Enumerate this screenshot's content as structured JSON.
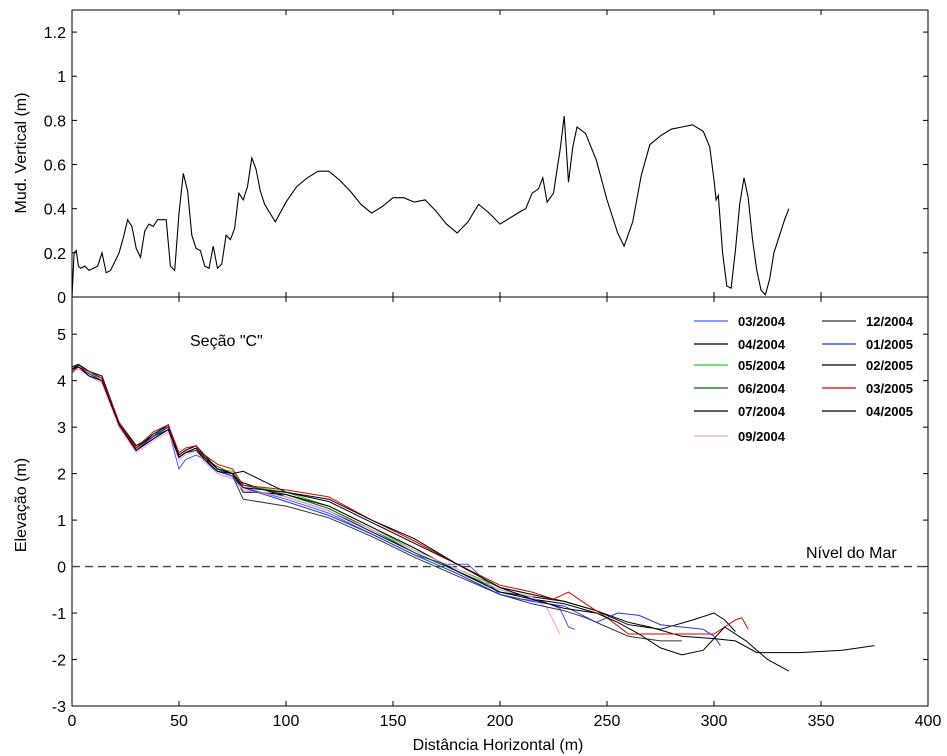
{
  "chart_data": [
    {
      "type": "line",
      "title": "",
      "xlabel": "",
      "ylabel": "Mud. Vertical (m)",
      "xlim": [
        0,
        400
      ],
      "ylim": [
        0,
        1.3
      ],
      "yticks": [
        "0",
        "0.2",
        "0.4",
        "0.6",
        "0.8",
        "1",
        "1.2"
      ],
      "grid": false,
      "series": [
        {
          "color": "#000000",
          "x": [
            0,
            1,
            2,
            3,
            4,
            6,
            8,
            10,
            12,
            14,
            16,
            18,
            20,
            22,
            24,
            26,
            28,
            30,
            32,
            34,
            36,
            38,
            40,
            42,
            44,
            46,
            48,
            50,
            52,
            54,
            56,
            58,
            60,
            62,
            64,
            66,
            68,
            70,
            72,
            74,
            76,
            78,
            80,
            82,
            84,
            86,
            88,
            90,
            95,
            100,
            105,
            110,
            115,
            120,
            125,
            130,
            135,
            140,
            145,
            150,
            155,
            160,
            165,
            170,
            175,
            180,
            185,
            190,
            195,
            200,
            205,
            210,
            212,
            215,
            218,
            220,
            222,
            225,
            227,
            228,
            229,
            230,
            232,
            234,
            236,
            240,
            245,
            250,
            255,
            258,
            262,
            266,
            270,
            275,
            280,
            285,
            290,
            295,
            298,
            300,
            301,
            302,
            304,
            306,
            308,
            310,
            312,
            314,
            316,
            318,
            320,
            322,
            324,
            326,
            328,
            330,
            333,
            335
          ],
          "y": [
            0.0,
            0.2,
            0.21,
            0.14,
            0.13,
            0.14,
            0.12,
            0.13,
            0.14,
            0.2,
            0.11,
            0.12,
            0.16,
            0.2,
            0.27,
            0.35,
            0.32,
            0.22,
            0.18,
            0.3,
            0.33,
            0.32,
            0.35,
            0.35,
            0.35,
            0.14,
            0.12,
            0.38,
            0.56,
            0.48,
            0.28,
            0.22,
            0.21,
            0.14,
            0.13,
            0.23,
            0.13,
            0.15,
            0.28,
            0.26,
            0.31,
            0.47,
            0.44,
            0.5,
            0.63,
            0.58,
            0.48,
            0.42,
            0.34,
            0.43,
            0.5,
            0.54,
            0.57,
            0.57,
            0.53,
            0.48,
            0.42,
            0.38,
            0.41,
            0.45,
            0.45,
            0.43,
            0.44,
            0.39,
            0.33,
            0.29,
            0.34,
            0.42,
            0.38,
            0.33,
            0.36,
            0.39,
            0.4,
            0.47,
            0.49,
            0.54,
            0.43,
            0.47,
            0.6,
            0.66,
            0.74,
            0.82,
            0.52,
            0.68,
            0.77,
            0.74,
            0.62,
            0.44,
            0.29,
            0.23,
            0.34,
            0.55,
            0.69,
            0.73,
            0.76,
            0.77,
            0.78,
            0.75,
            0.68,
            0.53,
            0.44,
            0.46,
            0.2,
            0.05,
            0.04,
            0.21,
            0.42,
            0.54,
            0.45,
            0.26,
            0.12,
            0.03,
            0.01,
            0.08,
            0.2,
            0.26,
            0.35,
            0.4
          ]
        }
      ]
    },
    {
      "type": "line",
      "title": "",
      "xlabel": "Distância Horizontal (m)",
      "ylabel": "Elevação (m)",
      "xlim": [
        0,
        400
      ],
      "ylim": [
        -3,
        5.8
      ],
      "xticks": [
        "0",
        "50",
        "100",
        "150",
        "200",
        "250",
        "300",
        "350",
        "400"
      ],
      "yticks": [
        "-3",
        "-2",
        "-1",
        "0",
        "1",
        "2",
        "3",
        "4",
        "5"
      ],
      "grid": false,
      "annotations": {
        "section_label": "Seção \"C\"",
        "sea_level_label": "Nível do Mar"
      },
      "sea_level": 0,
      "legend_position": "top-right",
      "series": [
        {
          "name": "03/2004",
          "color": "#3b5bff",
          "x": [
            0,
            3,
            8,
            14,
            22,
            30,
            38,
            45,
            50,
            53,
            58,
            62,
            68,
            75,
            80,
            100,
            120,
            140,
            160,
            175,
            185,
            200,
            210,
            220,
            228,
            232,
            235
          ],
          "y": [
            4.15,
            4.3,
            4.1,
            3.95,
            3.0,
            2.5,
            2.75,
            2.95,
            2.1,
            2.3,
            2.4,
            2.3,
            2.0,
            1.9,
            1.7,
            1.45,
            1.15,
            0.7,
            0.25,
            0.05,
            0.05,
            -0.6,
            -0.7,
            -0.75,
            -0.9,
            -1.3,
            -1.35
          ]
        },
        {
          "name": "04/2004",
          "color": "#000000",
          "x": [
            0,
            3,
            8,
            14,
            22,
            30,
            38,
            45,
            50,
            53,
            58,
            62,
            68,
            75,
            80,
            100,
            120,
            140,
            160,
            180,
            200,
            215,
            230,
            245,
            260,
            275,
            290,
            300,
            305,
            310
          ],
          "y": [
            4.2,
            4.3,
            4.15,
            4.0,
            3.05,
            2.55,
            2.8,
            3.05,
            2.35,
            2.45,
            2.55,
            2.3,
            2.05,
            1.95,
            1.8,
            1.5,
            1.2,
            0.75,
            0.3,
            -0.1,
            -0.55,
            -0.65,
            -0.75,
            -0.95,
            -1.25,
            -1.35,
            -1.15,
            -1.0,
            -1.15,
            -1.4
          ]
        },
        {
          "name": "05/2004",
          "color": "#22cc22",
          "x": [
            0,
            3,
            8,
            14,
            22,
            30,
            38,
            45,
            50,
            53,
            58,
            62,
            68,
            75,
            80,
            100,
            120,
            140,
            160,
            180,
            200,
            215
          ],
          "y": [
            4.25,
            4.3,
            4.15,
            4.05,
            3.1,
            2.6,
            2.85,
            3.0,
            2.4,
            2.5,
            2.6,
            2.35,
            2.1,
            2.05,
            1.75,
            1.6,
            1.3,
            0.85,
            0.35,
            -0.05,
            -0.45,
            -0.6
          ]
        },
        {
          "name": "06/2004",
          "color": "#006600",
          "x": [
            0,
            3,
            8,
            14,
            22,
            30,
            38,
            45,
            50,
            53,
            58,
            62,
            68,
            75,
            80,
            100,
            120,
            140,
            160,
            180,
            200,
            215
          ],
          "y": [
            4.2,
            4.35,
            4.2,
            4.05,
            3.1,
            2.55,
            2.8,
            2.95,
            2.35,
            2.45,
            2.55,
            2.3,
            2.15,
            2.0,
            1.75,
            1.55,
            1.25,
            0.8,
            0.3,
            -0.1,
            -0.5,
            -0.65
          ]
        },
        {
          "name": "07/2004",
          "color": "#000000",
          "x": [
            0,
            3,
            8,
            14,
            22,
            30,
            38,
            45,
            50,
            53,
            58,
            62,
            68,
            75,
            80,
            85,
            100,
            120,
            140,
            160,
            180,
            200,
            215,
            230,
            245
          ],
          "y": [
            4.3,
            4.35,
            4.2,
            4.1,
            3.1,
            2.6,
            2.8,
            3.0,
            2.4,
            2.5,
            2.6,
            2.4,
            2.1,
            2.0,
            1.6,
            1.6,
            1.55,
            1.3,
            0.85,
            0.4,
            -0.1,
            -0.55,
            -0.7,
            -0.8,
            -1.0
          ]
        },
        {
          "name": "09/2004",
          "color": "#ff99dd",
          "x": [
            0,
            3,
            8,
            14,
            22,
            30,
            38,
            45,
            50,
            53,
            58,
            62,
            68,
            75,
            80,
            100,
            120,
            140,
            160,
            180,
            200,
            215,
            222,
            228
          ],
          "y": [
            4.2,
            4.25,
            4.1,
            3.95,
            3.0,
            2.45,
            2.7,
            2.9,
            2.3,
            2.4,
            2.5,
            2.25,
            2.0,
            1.9,
            1.65,
            1.5,
            1.2,
            0.8,
            0.35,
            -0.05,
            -0.5,
            -0.65,
            -0.9,
            -1.45
          ]
        },
        {
          "name": "12/2004",
          "color": "#333333",
          "x": [
            0,
            3,
            8,
            14,
            22,
            30,
            38,
            45,
            50,
            53,
            58,
            62,
            68,
            75,
            80,
            100,
            120,
            140,
            160,
            180,
            200,
            215,
            230,
            240,
            250,
            260,
            275,
            285
          ],
          "y": [
            4.2,
            4.3,
            4.15,
            4.0,
            3.05,
            2.5,
            2.75,
            2.95,
            2.35,
            2.45,
            2.5,
            2.3,
            2.05,
            1.95,
            1.45,
            1.3,
            1.05,
            0.65,
            0.2,
            -0.2,
            -0.6,
            -0.8,
            -0.95,
            -1.1,
            -1.3,
            -1.5,
            -1.6,
            -1.6
          ]
        },
        {
          "name": "01/2005",
          "color": "#2233ee",
          "x": [
            0,
            3,
            8,
            14,
            22,
            30,
            38,
            45,
            50,
            53,
            58,
            62,
            68,
            75,
            80,
            100,
            120,
            140,
            160,
            180,
            200,
            215,
            230,
            245,
            255,
            265,
            275,
            285,
            295,
            300,
            303
          ],
          "y": [
            4.2,
            4.3,
            4.15,
            4.0,
            3.05,
            2.5,
            2.8,
            3.0,
            2.35,
            2.45,
            2.55,
            2.3,
            2.05,
            1.95,
            1.7,
            1.4,
            1.1,
            0.7,
            0.25,
            -0.15,
            -0.6,
            -0.75,
            -0.85,
            -1.2,
            -1.0,
            -1.05,
            -1.25,
            -1.3,
            -1.35,
            -1.5,
            -1.7
          ]
        },
        {
          "name": "02/2005",
          "color": "#000000",
          "x": [
            0,
            3,
            8,
            14,
            22,
            30,
            38,
            45,
            50,
            53,
            58,
            62,
            68,
            75,
            80,
            100,
            120,
            140,
            160,
            180,
            200,
            215,
            230,
            245,
            260,
            270,
            285,
            300,
            310,
            320,
            340,
            360,
            375
          ],
          "y": [
            4.25,
            4.35,
            4.2,
            4.05,
            3.1,
            2.55,
            2.85,
            3.05,
            2.4,
            2.5,
            2.6,
            2.35,
            2.1,
            2.0,
            1.7,
            1.6,
            1.4,
            0.95,
            0.5,
            0.05,
            -0.45,
            -0.6,
            -0.75,
            -0.95,
            -1.2,
            -1.3,
            -1.5,
            -1.55,
            -1.6,
            -1.85,
            -1.85,
            -1.8,
            -1.7
          ]
        },
        {
          "name": "03/2005",
          "color": "#dd0000",
          "x": [
            0,
            3,
            8,
            14,
            22,
            30,
            38,
            45,
            50,
            53,
            58,
            62,
            68,
            75,
            80,
            100,
            120,
            140,
            160,
            180,
            200,
            215,
            225,
            232,
            240,
            250,
            260,
            280,
            300,
            305,
            310,
            313,
            316
          ],
          "y": [
            4.2,
            4.3,
            4.2,
            4.05,
            3.1,
            2.55,
            2.9,
            3.05,
            2.45,
            2.55,
            2.6,
            2.4,
            2.2,
            2.1,
            1.75,
            1.65,
            1.5,
            1.0,
            0.55,
            0.05,
            -0.4,
            -0.55,
            -0.7,
            -0.55,
            -0.8,
            -1.1,
            -1.45,
            -1.45,
            -1.45,
            -1.3,
            -1.15,
            -1.1,
            -1.35
          ]
        },
        {
          "name": "04/2005",
          "color": "#000000",
          "x": [
            0,
            3,
            8,
            14,
            22,
            30,
            38,
            45,
            50,
            53,
            58,
            62,
            68,
            75,
            80,
            100,
            120,
            140,
            160,
            180,
            200,
            215,
            230,
            245,
            255,
            265,
            275,
            285,
            295,
            305,
            315,
            325,
            335
          ],
          "y": [
            4.25,
            4.3,
            4.1,
            4.0,
            3.05,
            2.5,
            2.75,
            2.95,
            2.35,
            2.45,
            2.55,
            2.3,
            2.05,
            2.0,
            2.05,
            1.6,
            1.45,
            1.0,
            0.6,
            0.05,
            -0.45,
            -0.7,
            -0.9,
            -1.0,
            -1.2,
            -1.45,
            -1.75,
            -1.9,
            -1.8,
            -1.3,
            -1.6,
            -2.0,
            -2.25
          ]
        }
      ]
    }
  ]
}
